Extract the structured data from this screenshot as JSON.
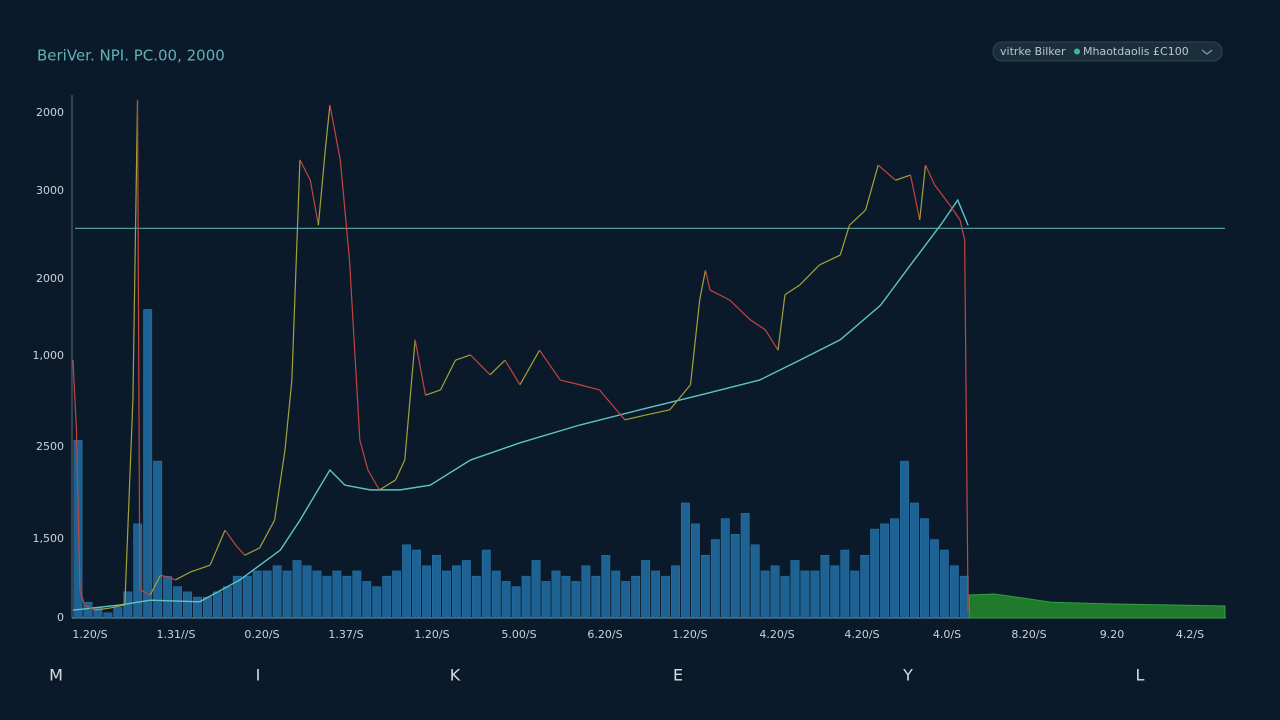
{
  "header": {
    "title": "BeriVer. NPI. PC.00, 2000"
  },
  "legend": {
    "items": [
      "vitrke Bilker",
      "Mhaotdaolis £C100"
    ]
  },
  "axis_labels": {
    "y": [
      "2000",
      "3000",
      "2000",
      "1,000",
      "2500",
      "1,500",
      "0"
    ],
    "x": [
      "1.20/S",
      "1.31//S",
      "0.20/S",
      "1.37/S",
      "1.20/S",
      "5.00/S",
      "6.20/S",
      "1.20/S",
      "4.20/S",
      "4.20/S",
      "4.0/S",
      "8.20/S",
      "9.20",
      "4.2/S"
    ]
  },
  "footer_letters": [
    "M",
    "I",
    "K",
    "E",
    "Y",
    "L"
  ],
  "plot": {
    "xlim": [
      0,
      100
    ],
    "ylim": [
      0,
      100
    ],
    "reference_line": 74.5,
    "price": {
      "x": [
        0,
        0.3,
        0.6,
        1.0,
        1.9,
        3.2,
        4.5,
        5.2,
        5.6,
        5.8,
        6.7,
        7.6,
        8.9,
        10.2,
        11.9,
        13.2,
        14.1,
        14.9,
        16.2,
        17.5,
        18.4,
        19.0,
        19.7,
        20.6,
        21.3,
        21.9,
        22.3,
        23.2,
        24.0,
        24.9,
        25.6,
        26.6,
        28.0,
        28.8,
        29.7,
        30.6,
        31.9,
        33.2,
        34.5,
        36.2,
        37.5,
        38.8,
        40.5,
        42.3,
        44.0,
        45.7,
        47.9,
        49.7,
        51.8,
        53.6,
        54.4,
        54.9,
        55.3,
        57.0,
        58.8,
        60.1,
        61.2,
        61.8,
        63.1,
        64.8,
        66.6,
        67.4,
        68.8,
        69.9,
        71.4,
        72.7,
        73.5,
        74.0,
        74.8,
        76.1,
        77.0,
        77.4,
        77.7
      ],
      "y": [
        49.3,
        35.9,
        5.4,
        2.5,
        1.5,
        1.9,
        2.5,
        41.7,
        99.0,
        5.4,
        4.4,
        8.2,
        7.3,
        8.8,
        10.1,
        16.8,
        14.0,
        12.0,
        13.4,
        18.7,
        32.1,
        45.5,
        87.6,
        83.7,
        75.1,
        89.5,
        98.1,
        87.6,
        68.5,
        34.0,
        28.3,
        24.5,
        26.4,
        30.2,
        53.2,
        42.6,
        43.6,
        49.3,
        50.3,
        46.5,
        49.3,
        44.6,
        51.2,
        45.5,
        44.6,
        43.6,
        37.9,
        38.8,
        39.8,
        44.6,
        60.8,
        66.5,
        62.7,
        60.8,
        57.0,
        55.1,
        51.2,
        61.8,
        63.7,
        67.5,
        69.4,
        75.1,
        78.0,
        86.6,
        83.7,
        84.7,
        76.1,
        86.6,
        82.8,
        79.0,
        76.1,
        72.3,
        1.1
      ]
    },
    "average": {
      "x": [
        0,
        4.1,
        6.7,
        11.0,
        14.5,
        18.0,
        19.7,
        22.3,
        23.6,
        25.8,
        28.4,
        31.0,
        34.5,
        38.8,
        44.0,
        49.2,
        54.4,
        59.6,
        63.1,
        66.6,
        70.1,
        72.7,
        75.3,
        76.8,
        77.7
      ],
      "y": [
        1.5,
        2.5,
        3.4,
        3.1,
        7.3,
        13.0,
        18.7,
        28.3,
        25.4,
        24.5,
        24.5,
        25.4,
        30.2,
        33.5,
        36.9,
        39.8,
        42.6,
        45.5,
        49.3,
        53.2,
        59.8,
        67.5,
        75.1,
        79.9,
        75.1
      ]
    },
    "volume": {
      "x_start": 0,
      "x_end": 77.8,
      "values": [
        34,
        3,
        2,
        1,
        2,
        5,
        18,
        59,
        30,
        8,
        6,
        5,
        4,
        4,
        5,
        6,
        8,
        8,
        9,
        9,
        10,
        9,
        11,
        10,
        9,
        8,
        9,
        8,
        9,
        7,
        6,
        8,
        9,
        14,
        13,
        10,
        12,
        9,
        10,
        11,
        8,
        13,
        9,
        7,
        6,
        8,
        11,
        7,
        9,
        8,
        7,
        10,
        8,
        12,
        9,
        7,
        8,
        11,
        9,
        8,
        10,
        22,
        18,
        12,
        15,
        19,
        16,
        20,
        14,
        9,
        10,
        8,
        11,
        9,
        9,
        12,
        10,
        13,
        9,
        12,
        17,
        18,
        19,
        30,
        22,
        19,
        15,
        13,
        10,
        8
      ]
    },
    "forecast": {
      "x": [
        77.8,
        80,
        85,
        90,
        95,
        100
      ],
      "y": [
        4.4,
        4.6,
        3.0,
        2.7,
        2.5,
        2.3
      ]
    }
  }
}
